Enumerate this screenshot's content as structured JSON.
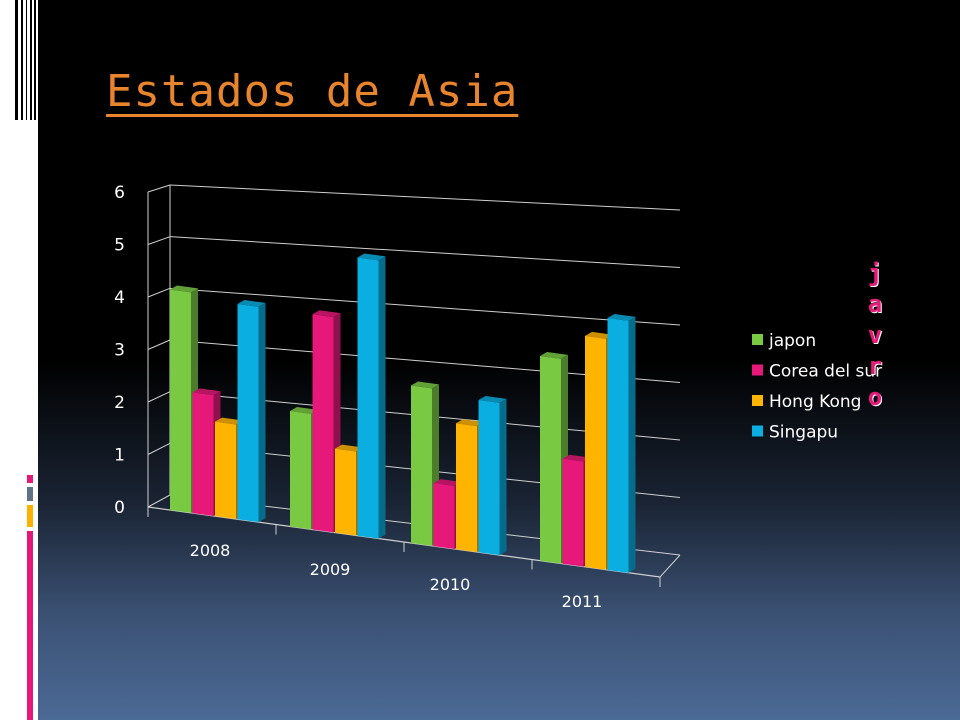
{
  "slide": {
    "title": "Estados de Asia",
    "vertical_word": [
      "j",
      "a",
      "v",
      "r",
      "o"
    ]
  },
  "colors": {
    "title": "#e8842c",
    "japon": "#7ac943",
    "corea": "#e6197a",
    "hongkong": "#ffb400",
    "singapu": "#0aaee0",
    "accent_pink": "#e6197a"
  },
  "chart_data": {
    "type": "bar",
    "categories": [
      "2008",
      "2009",
      "2010",
      "2011"
    ],
    "series": [
      {
        "name": "japon",
        "values": [
          4.2,
          2.2,
          3.0,
          3.9
        ]
      },
      {
        "name": "Corea del sur",
        "values": [
          2.3,
          4.1,
          1.2,
          2.0
        ]
      },
      {
        "name": "Hong Kong",
        "values": [
          1.8,
          1.6,
          2.4,
          4.4
        ]
      },
      {
        "name": "Singapu",
        "values": [
          4.1,
          5.3,
          2.9,
          4.8
        ]
      }
    ],
    "ylim": [
      0,
      6
    ],
    "yticks": [
      "0",
      "1",
      "2",
      "3",
      "4",
      "5",
      "6"
    ],
    "grid": true,
    "legend": "right",
    "style": "3d-perspective"
  }
}
